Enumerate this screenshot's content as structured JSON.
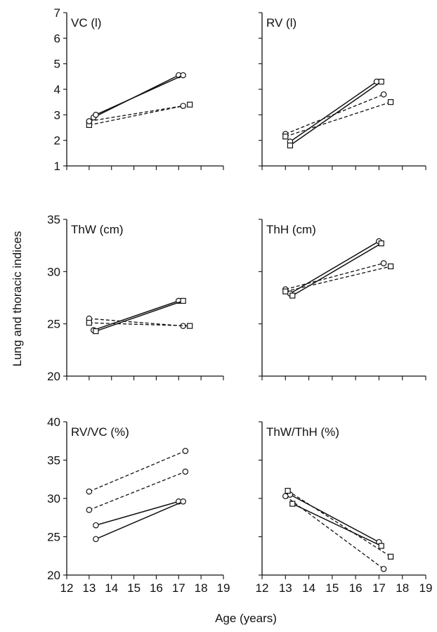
{
  "ylabel": "Lung and thoracic indices",
  "xlabel": "Age (years)",
  "chart_data": [
    {
      "type": "line",
      "title": "VC (l)",
      "xlim": [
        12,
        19
      ],
      "ylim": [
        1,
        7
      ],
      "yticks": [
        1,
        2,
        3,
        4,
        5,
        6,
        7
      ],
      "xticks": [
        12,
        13,
        14,
        15,
        16,
        17,
        18,
        19
      ],
      "show_x_tick_labels": false,
      "show_y_tick_labels": true,
      "series": [
        {
          "style": "solid",
          "marker": "circle",
          "x": [
            13.2,
            17.0
          ],
          "y": [
            2.9,
            4.55
          ]
        },
        {
          "style": "solid",
          "marker": "circle",
          "x": [
            13.3,
            17.2
          ],
          "y": [
            3.0,
            4.55
          ]
        },
        {
          "style": "dashed",
          "marker": "square",
          "x": [
            13.0,
            17.5
          ],
          "y": [
            2.6,
            3.4
          ]
        },
        {
          "style": "dashed",
          "marker": "circle",
          "x": [
            13.0,
            17.2
          ],
          "y": [
            2.75,
            3.35
          ]
        }
      ]
    },
    {
      "type": "line",
      "title": "RV (l)",
      "xlim": [
        12,
        19
      ],
      "ylim": [
        1,
        7
      ],
      "yticks": [
        1,
        2,
        3,
        4,
        5,
        6,
        7
      ],
      "xticks": [
        12,
        13,
        14,
        15,
        16,
        17,
        18,
        19
      ],
      "show_x_tick_labels": false,
      "show_y_tick_labels": false,
      "series": [
        {
          "style": "solid",
          "marker": "circle",
          "x": [
            13.2,
            16.9
          ],
          "y": [
            1.95,
            4.3
          ]
        },
        {
          "style": "solid",
          "marker": "square",
          "x": [
            13.2,
            17.1
          ],
          "y": [
            1.8,
            4.3
          ]
        },
        {
          "style": "dashed",
          "marker": "circle",
          "x": [
            13.0,
            17.2
          ],
          "y": [
            2.25,
            3.8
          ]
        },
        {
          "style": "dashed",
          "marker": "square",
          "x": [
            13.0,
            17.5
          ],
          "y": [
            2.15,
            3.5
          ]
        }
      ]
    },
    {
      "type": "line",
      "title": "ThW (cm)",
      "xlim": [
        12,
        19
      ],
      "ylim": [
        20,
        35
      ],
      "yticks": [
        20,
        25,
        30,
        35
      ],
      "xticks": [
        12,
        13,
        14,
        15,
        16,
        17,
        18,
        19
      ],
      "show_x_tick_labels": false,
      "show_y_tick_labels": true,
      "series": [
        {
          "style": "solid",
          "marker": "circle",
          "x": [
            13.2,
            17.0
          ],
          "y": [
            24.4,
            27.2
          ]
        },
        {
          "style": "solid",
          "marker": "square",
          "x": [
            13.3,
            17.2
          ],
          "y": [
            24.3,
            27.2
          ]
        },
        {
          "style": "dashed",
          "marker": "circle",
          "x": [
            13.0,
            17.2
          ],
          "y": [
            25.5,
            24.8
          ]
        },
        {
          "style": "dashed",
          "marker": "square",
          "x": [
            13.0,
            17.5
          ],
          "y": [
            25.1,
            24.8
          ]
        }
      ]
    },
    {
      "type": "line",
      "title": "ThH (cm)",
      "xlim": [
        12,
        19
      ],
      "ylim": [
        20,
        35
      ],
      "yticks": [
        20,
        25,
        30,
        35
      ],
      "xticks": [
        12,
        13,
        14,
        15,
        16,
        17,
        18,
        19
      ],
      "show_x_tick_labels": false,
      "show_y_tick_labels": false,
      "series": [
        {
          "style": "solid",
          "marker": "circle",
          "x": [
            13.2,
            17.0
          ],
          "y": [
            27.9,
            32.9
          ]
        },
        {
          "style": "solid",
          "marker": "square",
          "x": [
            13.3,
            17.1
          ],
          "y": [
            27.7,
            32.7
          ]
        },
        {
          "style": "dashed",
          "marker": "circle",
          "x": [
            13.0,
            17.2
          ],
          "y": [
            28.3,
            30.8
          ]
        },
        {
          "style": "dashed",
          "marker": "square",
          "x": [
            13.0,
            17.5
          ],
          "y": [
            28.1,
            30.5
          ]
        }
      ]
    },
    {
      "type": "line",
      "title": "RV/VC (%)",
      "xlim": [
        12,
        19
      ],
      "ylim": [
        20,
        40
      ],
      "yticks": [
        20,
        25,
        30,
        35,
        40
      ],
      "xticks": [
        12,
        13,
        14,
        15,
        16,
        17,
        18,
        19
      ],
      "show_x_tick_labels": true,
      "show_y_tick_labels": true,
      "series": [
        {
          "style": "dashed",
          "marker": "circle",
          "x": [
            13.0,
            17.3
          ],
          "y": [
            30.9,
            36.2
          ]
        },
        {
          "style": "dashed",
          "marker": "circle",
          "x": [
            13.0,
            17.3
          ],
          "y": [
            28.5,
            33.5
          ]
        },
        {
          "style": "solid",
          "marker": "circle",
          "x": [
            13.3,
            17.0
          ],
          "y": [
            26.5,
            29.6
          ]
        },
        {
          "style": "solid",
          "marker": "circle",
          "x": [
            13.3,
            17.2
          ],
          "y": [
            24.7,
            29.6
          ]
        }
      ]
    },
    {
      "type": "line",
      "title": "ThW/ThH (%)",
      "xlim": [
        12,
        19
      ],
      "ylim": [
        20,
        40
      ],
      "yticks": [
        20,
        25,
        30,
        35,
        40
      ],
      "xticks": [
        12,
        13,
        14,
        15,
        16,
        17,
        18,
        19
      ],
      "show_x_tick_labels": true,
      "show_y_tick_labels": false,
      "series": [
        {
          "style": "solid",
          "marker": "circle",
          "x": [
            13.2,
            17.0
          ],
          "y": [
            30.5,
            24.3
          ]
        },
        {
          "style": "solid",
          "marker": "square",
          "x": [
            13.3,
            17.1
          ],
          "y": [
            29.3,
            23.8
          ]
        },
        {
          "style": "dashed",
          "marker": "circle",
          "x": [
            13.0,
            17.2
          ],
          "y": [
            30.3,
            20.8
          ]
        },
        {
          "style": "dashed",
          "marker": "square",
          "x": [
            13.1,
            17.5
          ],
          "y": [
            31.0,
            22.4
          ]
        }
      ]
    }
  ]
}
